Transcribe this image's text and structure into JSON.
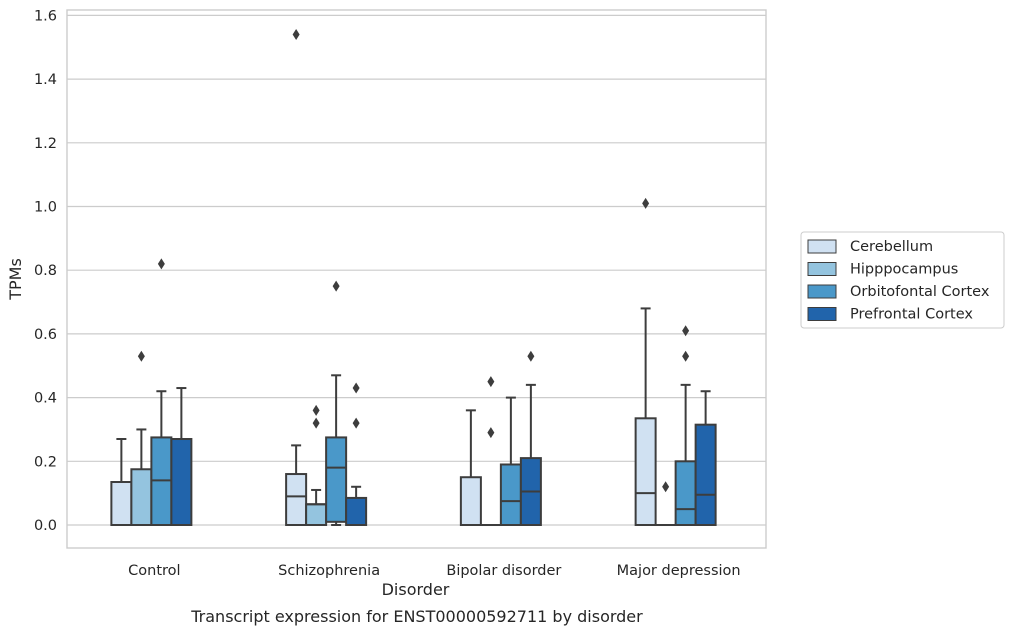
{
  "chart_data": {
    "type": "box",
    "caption": "Transcript expression for ENST00000592711 by disorder",
    "xlabel": "Disorder",
    "ylabel": "TPMs",
    "ylim": [
      -0.075,
      1.62
    ],
    "yticks": [
      0.0,
      0.2,
      0.4,
      0.6,
      0.8,
      1.0,
      1.2,
      1.4,
      1.6
    ],
    "ytick_labels": [
      "0.0",
      "0.2",
      "0.4",
      "0.6",
      "0.8",
      "1.0",
      "1.2",
      "1.4",
      "1.6"
    ],
    "grid": "horizontal",
    "legend_position": "right",
    "categories": [
      "Control",
      "Schizophrenia",
      "Bipolar disorder",
      "Major depression"
    ],
    "series": [
      {
        "name": "Cerebellum",
        "color": "#d0e1f2",
        "boxes": [
          {
            "whislo": 0.0,
            "q1": 0.0,
            "med": 0.0,
            "q3": 0.135,
            "whishi": 0.27,
            "fliers": []
          },
          {
            "whislo": 0.0,
            "q1": 0.0,
            "med": 0.09,
            "q3": 0.16,
            "whishi": 0.25,
            "fliers": [
              1.54
            ]
          },
          {
            "whislo": 0.0,
            "q1": 0.0,
            "med": 0.0,
            "q3": 0.15,
            "whishi": 0.36,
            "fliers": []
          },
          {
            "whislo": 0.0,
            "q1": 0.0,
            "med": 0.1,
            "q3": 0.335,
            "whishi": 0.68,
            "fliers": [
              1.01
            ]
          }
        ]
      },
      {
        "name": "Hipppocampus",
        "color": "#94c4df",
        "boxes": [
          {
            "whislo": 0.0,
            "q1": 0.0,
            "med": 0.0,
            "q3": 0.175,
            "whishi": 0.3,
            "fliers": [
              0.53
            ]
          },
          {
            "whislo": 0.0,
            "q1": 0.0,
            "med": 0.065,
            "q3": 0.065,
            "whishi": 0.11,
            "fliers": [
              0.32,
              0.36
            ]
          },
          {
            "whislo": 0.0,
            "q1": 0.0,
            "med": 0.0,
            "q3": 0.0,
            "whishi": 0.0,
            "fliers": [
              0.29,
              0.45
            ]
          },
          {
            "whislo": 0.0,
            "q1": 0.0,
            "med": 0.0,
            "q3": 0.0,
            "whishi": 0.0,
            "fliers": [
              0.12
            ]
          }
        ]
      },
      {
        "name": "Orbitofontal Cortex",
        "color": "#4a98c9",
        "boxes": [
          {
            "whislo": 0.0,
            "q1": 0.0,
            "med": 0.14,
            "q3": 0.275,
            "whishi": 0.42,
            "fliers": [
              0.82
            ]
          },
          {
            "whislo": 0.0,
            "q1": 0.01,
            "med": 0.18,
            "q3": 0.275,
            "whishi": 0.47,
            "fliers": [
              0.75
            ]
          },
          {
            "whislo": 0.0,
            "q1": 0.0,
            "med": 0.075,
            "q3": 0.19,
            "whishi": 0.4,
            "fliers": []
          },
          {
            "whislo": 0.0,
            "q1": 0.0,
            "med": 0.05,
            "q3": 0.2,
            "whishi": 0.44,
            "fliers": [
              0.53,
              0.61
            ]
          }
        ]
      },
      {
        "name": "Prefrontal Cortex",
        "color": "#2164ab",
        "boxes": [
          {
            "whislo": 0.0,
            "q1": 0.0,
            "med": 0.0,
            "q3": 0.27,
            "whishi": 0.43,
            "fliers": []
          },
          {
            "whislo": 0.0,
            "q1": 0.0,
            "med": 0.0,
            "q3": 0.085,
            "whishi": 0.12,
            "fliers": [
              0.32,
              0.43
            ]
          },
          {
            "whislo": 0.0,
            "q1": 0.0,
            "med": 0.105,
            "q3": 0.21,
            "whishi": 0.44,
            "fliers": [
              0.53
            ]
          },
          {
            "whislo": 0.0,
            "q1": 0.0,
            "med": 0.095,
            "q3": 0.315,
            "whishi": 0.42,
            "fliers": []
          }
        ]
      }
    ]
  }
}
